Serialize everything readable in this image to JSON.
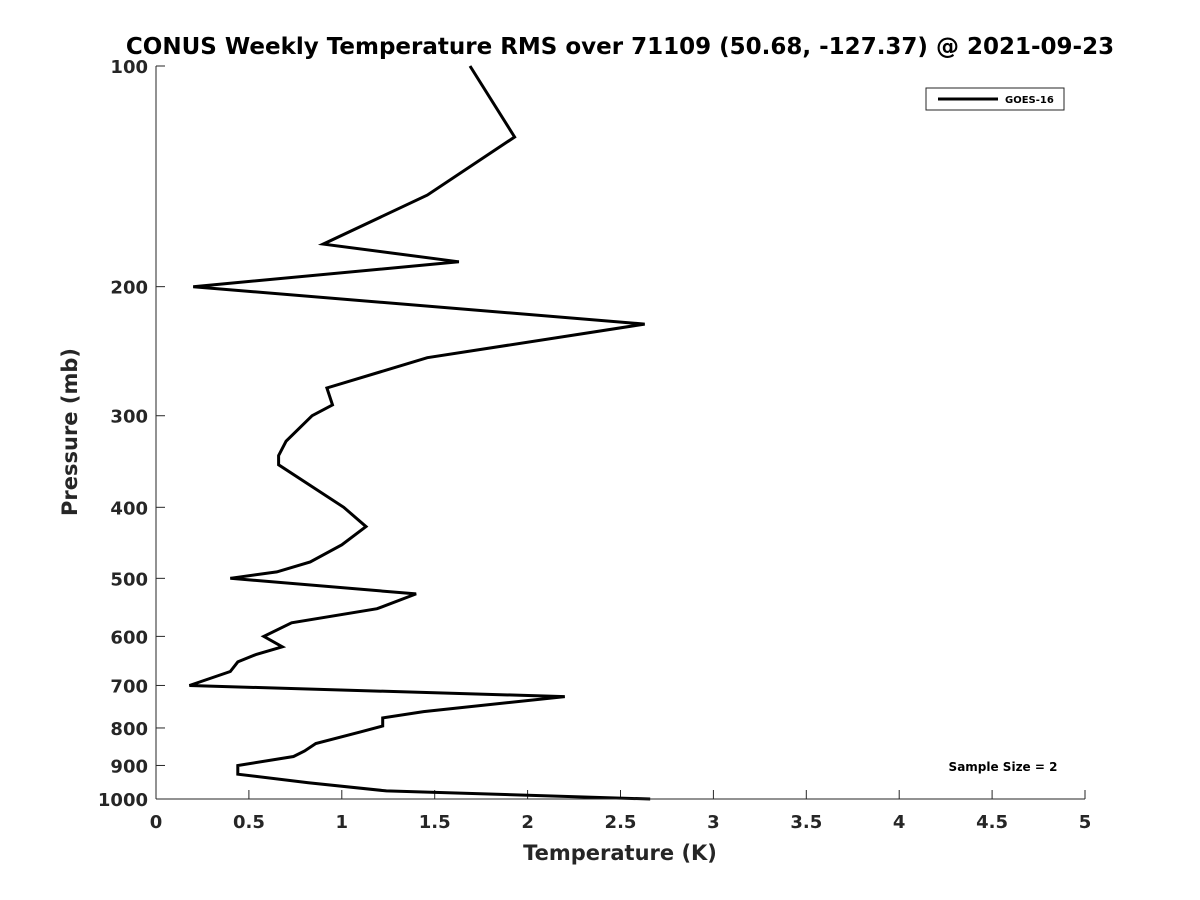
{
  "chart_data": {
    "type": "line",
    "title": "CONUS Weekly Temperature RMS over 71109 (50.68, -127.37) @ 2021-09-23",
    "xlabel": "Temperature (K)",
    "ylabel": "Pressure (mb)",
    "xlim": [
      0,
      5
    ],
    "ylim": [
      100,
      1000
    ],
    "y_scale": "log",
    "y_direction": "reversed",
    "x_ticks": [
      0,
      0.5,
      1,
      1.5,
      2,
      2.5,
      3,
      3.5,
      4,
      4.5,
      5
    ],
    "x_tick_labels": [
      "0",
      "0.5",
      "1",
      "1.5",
      "2",
      "2.5",
      "3",
      "3.5",
      "4",
      "4.5",
      "5"
    ],
    "y_ticks": [
      100,
      200,
      300,
      400,
      500,
      600,
      700,
      800,
      900,
      1000
    ],
    "y_tick_labels": [
      "100",
      "200",
      "300",
      "400",
      "500",
      "600",
      "700",
      "800",
      "900",
      "1000"
    ],
    "grid": false,
    "legend_position": "top-right",
    "series": [
      {
        "name": "GOES-16",
        "color": "#000000",
        "points": [
          [
            1.69,
            100
          ],
          [
            1.93,
            125
          ],
          [
            1.46,
            150
          ],
          [
            0.9,
            175
          ],
          [
            1.63,
            185
          ],
          [
            0.2,
            200
          ],
          [
            2.63,
            225
          ],
          [
            1.46,
            250
          ],
          [
            0.92,
            275
          ],
          [
            0.95,
            290
          ],
          [
            0.84,
            300
          ],
          [
            0.7,
            325
          ],
          [
            0.66,
            340
          ],
          [
            0.66,
            350
          ],
          [
            1.01,
            400
          ],
          [
            1.13,
            425
          ],
          [
            1.0,
            450
          ],
          [
            0.83,
            475
          ],
          [
            0.65,
            490
          ],
          [
            0.4,
            500
          ],
          [
            1.4,
            525
          ],
          [
            1.19,
            550
          ],
          [
            0.73,
            575
          ],
          [
            0.58,
            600
          ],
          [
            0.68,
            620
          ],
          [
            0.54,
            635
          ],
          [
            0.44,
            650
          ],
          [
            0.4,
            670
          ],
          [
            0.18,
            700
          ],
          [
            2.2,
            725
          ],
          [
            1.44,
            760
          ],
          [
            1.22,
            775
          ],
          [
            1.22,
            795
          ],
          [
            1.1,
            810
          ],
          [
            0.86,
            840
          ],
          [
            0.8,
            860
          ],
          [
            0.74,
            875
          ],
          [
            0.44,
            900
          ],
          [
            0.44,
            925
          ],
          [
            0.82,
            950
          ],
          [
            1.24,
            975
          ],
          [
            2.66,
            1000
          ]
        ]
      }
    ],
    "annotations": [
      "Sample Size = 2"
    ]
  }
}
